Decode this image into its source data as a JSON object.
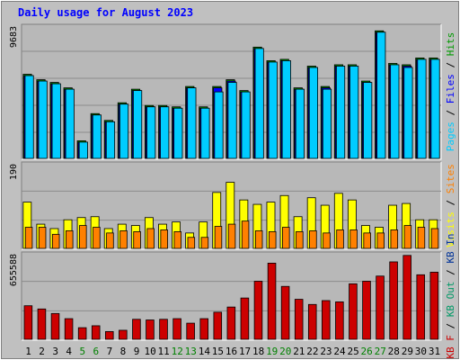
{
  "title": "Daily usage for August 2023",
  "colors": {
    "background": "#c0c0c0",
    "plot_bg": "#b8b8b8",
    "title": "#0000ff",
    "hits": "#009900",
    "files": "#0000ff",
    "pages": "#00ccff",
    "visits": "#ffff00",
    "sites": "#ff8000",
    "kbin": "#003399",
    "kbout": "#009966",
    "kbf": "#cc0000",
    "weekday_label": "#000000",
    "weekend_label": "#008000"
  },
  "chart_data": [
    {
      "type": "bar",
      "ymax_label": "9683",
      "right_labels": [
        {
          "text": "Pages",
          "color": "#00ccff"
        },
        {
          "text": " / ",
          "color": "#000000"
        },
        {
          "text": "Files",
          "color": "#0000ff"
        },
        {
          "text": " / ",
          "color": "#000000"
        },
        {
          "text": "Hits",
          "color": "#009900"
        }
      ],
      "ylim": [
        0,
        9683
      ],
      "categories": [
        "1",
        "2",
        "3",
        "4",
        "5",
        "6",
        "7",
        "8",
        "9",
        "10",
        "11",
        "12",
        "13",
        "14",
        "15",
        "16",
        "17",
        "18",
        "19",
        "20",
        "21",
        "22",
        "23",
        "24",
        "25",
        "26",
        "27",
        "28",
        "29",
        "30",
        "31"
      ],
      "series": [
        {
          "name": "Hits",
          "color": "#009900",
          "values": [
            6200,
            5800,
            5600,
            5200,
            1300,
            3300,
            2800,
            4100,
            5100,
            3900,
            3900,
            3800,
            5300,
            3800,
            5300,
            5800,
            5000,
            8200,
            7200,
            7300,
            5200,
            6800,
            5300,
            6900,
            6900,
            5700,
            9400,
            7000,
            6900,
            7400,
            7400
          ]
        },
        {
          "name": "Files",
          "color": "#0000ff",
          "values": [
            6100,
            5700,
            5500,
            5100,
            1200,
            3200,
            2700,
            4000,
            5000,
            3800,
            3800,
            3700,
            5200,
            3700,
            5200,
            5700,
            4900,
            8100,
            7100,
            7200,
            5100,
            6700,
            5200,
            6800,
            6800,
            5600,
            9300,
            6900,
            6800,
            7300,
            7300
          ]
        },
        {
          "name": "Pages",
          "color": "#00ccff",
          "values": [
            6100,
            5700,
            5500,
            5100,
            1200,
            3200,
            2700,
            4000,
            5000,
            3800,
            3800,
            3700,
            5200,
            3700,
            4900,
            5600,
            4900,
            8100,
            7100,
            7200,
            5100,
            6700,
            5100,
            6800,
            6800,
            5600,
            9300,
            6900,
            6700,
            7300,
            7300
          ]
        }
      ]
    },
    {
      "type": "bar",
      "ymax_label": "190",
      "right_labels": [
        {
          "text": "Visits",
          "color": "#ffff00"
        },
        {
          "text": " / ",
          "color": "#000000"
        },
        {
          "text": "Sites",
          "color": "#ff8000"
        }
      ],
      "ylim": [
        0,
        190
      ],
      "categories": [
        "1",
        "2",
        "3",
        "4",
        "5",
        "6",
        "7",
        "8",
        "9",
        "10",
        "11",
        "12",
        "13",
        "14",
        "15",
        "16",
        "17",
        "18",
        "19",
        "20",
        "21",
        "22",
        "23",
        "24",
        "25",
        "26",
        "27",
        "28",
        "29",
        "30",
        "31"
      ],
      "series": [
        {
          "name": "Visits",
          "color": "#ffff00",
          "values": [
            105,
            55,
            45,
            65,
            70,
            72,
            45,
            55,
            52,
            70,
            55,
            60,
            35,
            60,
            127,
            150,
            110,
            100,
            105,
            120,
            72,
            115,
            98,
            125,
            110,
            52,
            48,
            98,
            102,
            65,
            65
          ]
        },
        {
          "name": "Sites",
          "color": "#ff8000",
          "values": [
            48,
            48,
            32,
            40,
            52,
            48,
            35,
            40,
            38,
            45,
            42,
            38,
            25,
            25,
            50,
            55,
            62,
            40,
            38,
            48,
            38,
            40,
            35,
            42,
            42,
            35,
            35,
            42,
            52,
            48,
            45
          ]
        }
      ]
    },
    {
      "type": "bar",
      "ymax_label": "655588",
      "right_labels": [
        {
          "text": "KB F",
          "color": "#cc0000"
        },
        {
          "text": " / ",
          "color": "#000000"
        },
        {
          "text": "KB Out",
          "color": "#009966"
        },
        {
          "text": " / ",
          "color": "#000000"
        },
        {
          "text": "KB In",
          "color": "#003399"
        }
      ],
      "ylim": [
        0,
        655588
      ],
      "categories": [
        "1",
        "2",
        "3",
        "4",
        "5",
        "6",
        "7",
        "8",
        "9",
        "10",
        "11",
        "12",
        "13",
        "14",
        "15",
        "16",
        "17",
        "18",
        "19",
        "20",
        "21",
        "22",
        "23",
        "24",
        "25",
        "26",
        "27",
        "28",
        "29",
        "30",
        "31"
      ],
      "series": [
        {
          "name": "KB F",
          "color": "#cc0000",
          "values": [
            260000,
            235000,
            200000,
            160000,
            90000,
            105000,
            60000,
            70000,
            155000,
            150000,
            155000,
            160000,
            125000,
            160000,
            210000,
            250000,
            320000,
            450000,
            590000,
            410000,
            310000,
            270000,
            300000,
            290000,
            430000,
            450000,
            490000,
            600000,
            650000,
            500000,
            520000
          ]
        }
      ]
    }
  ],
  "x_labels": [
    {
      "t": "1",
      "w": false
    },
    {
      "t": "2",
      "w": false
    },
    {
      "t": "3",
      "w": false
    },
    {
      "t": "4",
      "w": false
    },
    {
      "t": "5",
      "w": true
    },
    {
      "t": "6",
      "w": true
    },
    {
      "t": "7",
      "w": false
    },
    {
      "t": "8",
      "w": false
    },
    {
      "t": "9",
      "w": false
    },
    {
      "t": "10",
      "w": false
    },
    {
      "t": "11",
      "w": false
    },
    {
      "t": "12",
      "w": true
    },
    {
      "t": "13",
      "w": true
    },
    {
      "t": "14",
      "w": false
    },
    {
      "t": "15",
      "w": false
    },
    {
      "t": "16",
      "w": false
    },
    {
      "t": "17",
      "w": false
    },
    {
      "t": "18",
      "w": false
    },
    {
      "t": "19",
      "w": true
    },
    {
      "t": "20",
      "w": true
    },
    {
      "t": "21",
      "w": false
    },
    {
      "t": "22",
      "w": false
    },
    {
      "t": "23",
      "w": false
    },
    {
      "t": "24",
      "w": false
    },
    {
      "t": "25",
      "w": false
    },
    {
      "t": "26",
      "w": true
    },
    {
      "t": "27",
      "w": true
    },
    {
      "t": "28",
      "w": false
    },
    {
      "t": "29",
      "w": false
    },
    {
      "t": "30",
      "w": false
    },
    {
      "t": "31",
      "w": false
    }
  ]
}
